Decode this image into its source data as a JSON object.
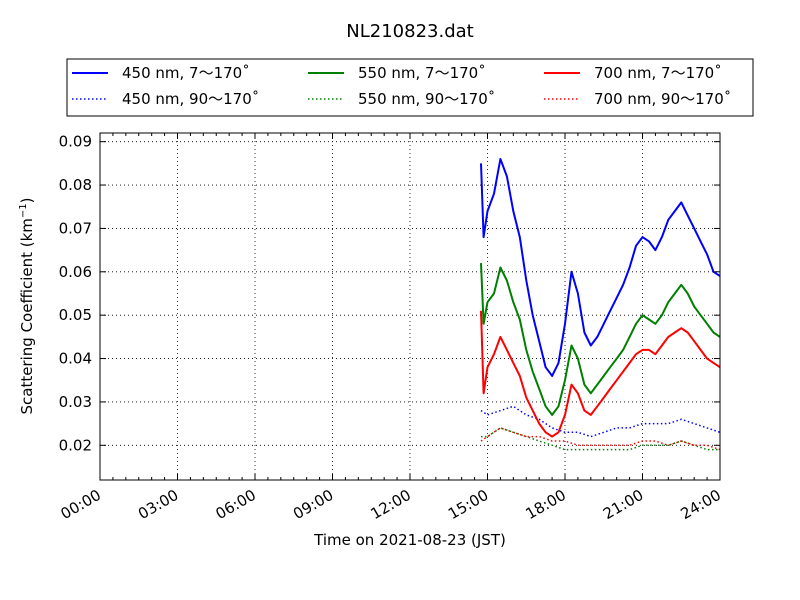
{
  "chart_data": {
    "type": "line",
    "title": "NL210823.dat",
    "xlabel": "Time on 2021-08-23 (JST)",
    "ylabel_main": "Scattering Coefficient (km",
    "ylabel_sup": "−1",
    "ylabel_end": ")",
    "xlim": [
      0,
      24
    ],
    "ylim": [
      0.012,
      0.092
    ],
    "x_unit": "hours",
    "grid": true,
    "legend_position": "top",
    "x_ticks": [
      {
        "value": 0,
        "label": "00:00"
      },
      {
        "value": 3,
        "label": "03:00"
      },
      {
        "value": 6,
        "label": "06:00"
      },
      {
        "value": 9,
        "label": "09:00"
      },
      {
        "value": 12,
        "label": "12:00"
      },
      {
        "value": 15,
        "label": "15:00"
      },
      {
        "value": 18,
        "label": "18:00"
      },
      {
        "value": 21,
        "label": "21:00"
      },
      {
        "value": 24,
        "label": "24:00"
      }
    ],
    "y_ticks": [
      {
        "value": 0.02,
        "label": "0.02"
      },
      {
        "value": 0.03,
        "label": "0.03"
      },
      {
        "value": 0.04,
        "label": "0.04"
      },
      {
        "value": 0.05,
        "label": "0.05"
      },
      {
        "value": 0.06,
        "label": "0.06"
      },
      {
        "value": 0.07,
        "label": "0.07"
      },
      {
        "value": 0.08,
        "label": "0.08"
      },
      {
        "value": 0.09,
        "label": "0.09"
      }
    ],
    "series": [
      {
        "name": "450 nm, 7～170˚",
        "color": "#0000ff",
        "style": "solid",
        "x": [
          14.75,
          14.85,
          15.0,
          15.25,
          15.5,
          15.75,
          16.0,
          16.25,
          16.5,
          16.75,
          17.0,
          17.25,
          17.5,
          17.75,
          18.0,
          18.25,
          18.5,
          18.75,
          19.0,
          19.25,
          19.5,
          19.75,
          20.0,
          20.25,
          20.5,
          20.75,
          21.0,
          21.25,
          21.5,
          21.75,
          22.0,
          22.25,
          22.5,
          22.75,
          23.0,
          23.25,
          23.5,
          23.75,
          24.0
        ],
        "y": [
          0.085,
          0.068,
          0.074,
          0.078,
          0.086,
          0.082,
          0.074,
          0.068,
          0.058,
          0.05,
          0.044,
          0.038,
          0.036,
          0.039,
          0.048,
          0.06,
          0.055,
          0.046,
          0.043,
          0.045,
          0.048,
          0.051,
          0.054,
          0.057,
          0.061,
          0.066,
          0.068,
          0.067,
          0.065,
          0.068,
          0.072,
          0.074,
          0.076,
          0.073,
          0.07,
          0.067,
          0.064,
          0.06,
          0.059
        ]
      },
      {
        "name": "450 nm, 90～170˚",
        "color": "#0000ff",
        "style": "dotted",
        "x": [
          14.75,
          15.0,
          15.5,
          16.0,
          16.5,
          17.0,
          17.5,
          18.0,
          18.5,
          19.0,
          19.5,
          20.0,
          20.5,
          21.0,
          21.5,
          22.0,
          22.5,
          23.0,
          23.5,
          24.0
        ],
        "y": [
          0.028,
          0.027,
          0.028,
          0.029,
          0.027,
          0.026,
          0.024,
          0.023,
          0.023,
          0.022,
          0.023,
          0.024,
          0.024,
          0.025,
          0.025,
          0.025,
          0.026,
          0.025,
          0.024,
          0.023
        ]
      },
      {
        "name": "550 nm, 7～170˚",
        "color": "#008000",
        "style": "solid",
        "x": [
          14.75,
          14.85,
          15.0,
          15.25,
          15.5,
          15.75,
          16.0,
          16.25,
          16.5,
          16.75,
          17.0,
          17.25,
          17.5,
          17.75,
          18.0,
          18.25,
          18.5,
          18.75,
          19.0,
          19.25,
          19.5,
          19.75,
          20.0,
          20.25,
          20.5,
          20.75,
          21.0,
          21.25,
          21.5,
          21.75,
          22.0,
          22.25,
          22.5,
          22.75,
          23.0,
          23.25,
          23.5,
          23.75,
          24.0
        ],
        "y": [
          0.062,
          0.048,
          0.053,
          0.055,
          0.061,
          0.058,
          0.053,
          0.049,
          0.042,
          0.037,
          0.033,
          0.029,
          0.027,
          0.029,
          0.035,
          0.043,
          0.04,
          0.034,
          0.032,
          0.034,
          0.036,
          0.038,
          0.04,
          0.042,
          0.045,
          0.048,
          0.05,
          0.049,
          0.048,
          0.05,
          0.053,
          0.055,
          0.057,
          0.055,
          0.052,
          0.05,
          0.048,
          0.046,
          0.045
        ]
      },
      {
        "name": "550 nm, 90～170˚",
        "color": "#008000",
        "style": "dotted",
        "x": [
          14.75,
          15.0,
          15.5,
          16.0,
          16.5,
          17.0,
          17.5,
          18.0,
          18.5,
          19.0,
          19.5,
          20.0,
          20.5,
          21.0,
          21.5,
          22.0,
          22.5,
          23.0,
          23.5,
          24.0
        ],
        "y": [
          0.022,
          0.022,
          0.024,
          0.023,
          0.022,
          0.021,
          0.02,
          0.019,
          0.019,
          0.019,
          0.019,
          0.019,
          0.019,
          0.02,
          0.02,
          0.02,
          0.021,
          0.02,
          0.019,
          0.019
        ]
      },
      {
        "name": "700 nm, 7～170˚",
        "color": "#ff0000",
        "style": "solid",
        "x": [
          14.75,
          14.85,
          15.0,
          15.25,
          15.5,
          15.75,
          16.0,
          16.25,
          16.5,
          16.75,
          17.0,
          17.25,
          17.5,
          17.75,
          18.0,
          18.25,
          18.5,
          18.75,
          19.0,
          19.25,
          19.5,
          19.75,
          20.0,
          20.25,
          20.5,
          20.75,
          21.0,
          21.25,
          21.5,
          21.75,
          22.0,
          22.25,
          22.5,
          22.75,
          23.0,
          23.25,
          23.5,
          23.75,
          24.0
        ],
        "y": [
          0.051,
          0.032,
          0.038,
          0.041,
          0.045,
          0.042,
          0.039,
          0.036,
          0.031,
          0.028,
          0.025,
          0.023,
          0.022,
          0.023,
          0.027,
          0.034,
          0.032,
          0.028,
          0.027,
          0.029,
          0.031,
          0.033,
          0.035,
          0.037,
          0.039,
          0.041,
          0.042,
          0.042,
          0.041,
          0.043,
          0.045,
          0.046,
          0.047,
          0.046,
          0.044,
          0.042,
          0.04,
          0.039,
          0.038
        ]
      },
      {
        "name": "700 nm, 90～170˚",
        "color": "#ff0000",
        "style": "dotted",
        "x": [
          14.75,
          15.0,
          15.5,
          16.0,
          16.5,
          17.0,
          17.5,
          18.0,
          18.5,
          19.0,
          19.5,
          20.0,
          20.5,
          21.0,
          21.5,
          22.0,
          22.5,
          23.0,
          23.5,
          24.0
        ],
        "y": [
          0.021,
          0.022,
          0.024,
          0.023,
          0.022,
          0.022,
          0.021,
          0.021,
          0.02,
          0.02,
          0.02,
          0.02,
          0.02,
          0.021,
          0.021,
          0.02,
          0.021,
          0.02,
          0.02,
          0.019
        ]
      }
    ]
  }
}
